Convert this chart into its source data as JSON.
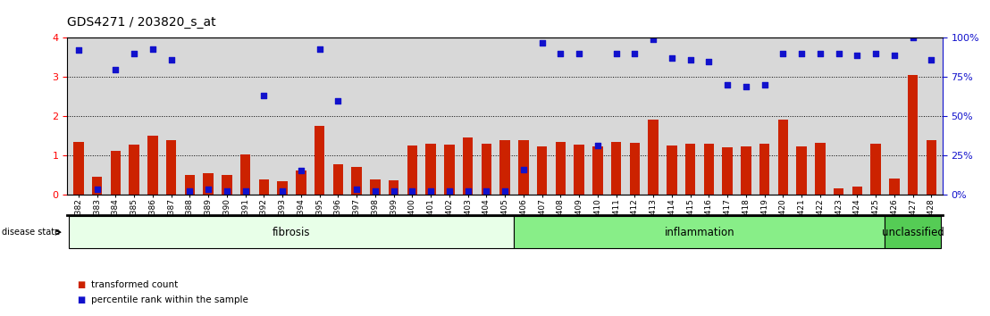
{
  "title": "GDS4271 / 203820_s_at",
  "samples": [
    "GSM380382",
    "GSM380383",
    "GSM380384",
    "GSM380385",
    "GSM380386",
    "GSM380387",
    "GSM380388",
    "GSM380389",
    "GSM380390",
    "GSM380391",
    "GSM380392",
    "GSM380393",
    "GSM380394",
    "GSM380395",
    "GSM380396",
    "GSM380397",
    "GSM380398",
    "GSM380399",
    "GSM380400",
    "GSM380401",
    "GSM380402",
    "GSM380403",
    "GSM380404",
    "GSM380405",
    "GSM380406",
    "GSM380407",
    "GSM380408",
    "GSM380409",
    "GSM380410",
    "GSM380411",
    "GSM380412",
    "GSM380413",
    "GSM380414",
    "GSM380415",
    "GSM380416",
    "GSM380417",
    "GSM380418",
    "GSM380419",
    "GSM380420",
    "GSM380421",
    "GSM380422",
    "GSM380423",
    "GSM380424",
    "GSM380425",
    "GSM380426",
    "GSM380427",
    "GSM380428"
  ],
  "red_bars": [
    1.35,
    0.45,
    1.12,
    1.28,
    1.5,
    1.38,
    0.5,
    0.55,
    0.5,
    1.02,
    0.38,
    0.33,
    0.6,
    1.75,
    0.78,
    0.7,
    0.38,
    0.35,
    1.25,
    1.3,
    1.28,
    1.45,
    1.3,
    1.38,
    1.38,
    1.22,
    1.35,
    1.28,
    1.22,
    1.35,
    1.32,
    1.92,
    1.25,
    1.3,
    1.3,
    1.2,
    1.22,
    1.3,
    1.92,
    1.22,
    1.32,
    0.15,
    0.2,
    1.3,
    0.4,
    3.05,
    1.38
  ],
  "blue_dots_pct": [
    92,
    3,
    80,
    90,
    93,
    86,
    2,
    3,
    2,
    2,
    63,
    2,
    15,
    93,
    60,
    3,
    2,
    2,
    2,
    2,
    2,
    2,
    2,
    2,
    16,
    97,
    90,
    90,
    31,
    90,
    90,
    99,
    87,
    86,
    85,
    70,
    69,
    70,
    90,
    90,
    90,
    90,
    89,
    90,
    89,
    100,
    86
  ],
  "groups": [
    {
      "label": "fibrosis",
      "start": 0,
      "end": 24,
      "color": "#e8ffe8"
    },
    {
      "label": "inflammation",
      "start": 24,
      "end": 44,
      "color": "#88ee88"
    },
    {
      "label": "unclassified",
      "start": 44,
      "end": 47,
      "color": "#55cc55"
    }
  ],
  "ylim_left": [
    0,
    4
  ],
  "ylim_right": [
    0,
    100
  ],
  "yticks_left": [
    0,
    1,
    2,
    3,
    4
  ],
  "yticks_right": [
    0,
    25,
    50,
    75,
    100
  ],
  "bar_color": "#cc2200",
  "dot_color": "#1111cc",
  "bg_color": "#d8d8d8",
  "title_fontsize": 10,
  "label_fontsize": 6.5,
  "group_label_fontsize": 8.5
}
